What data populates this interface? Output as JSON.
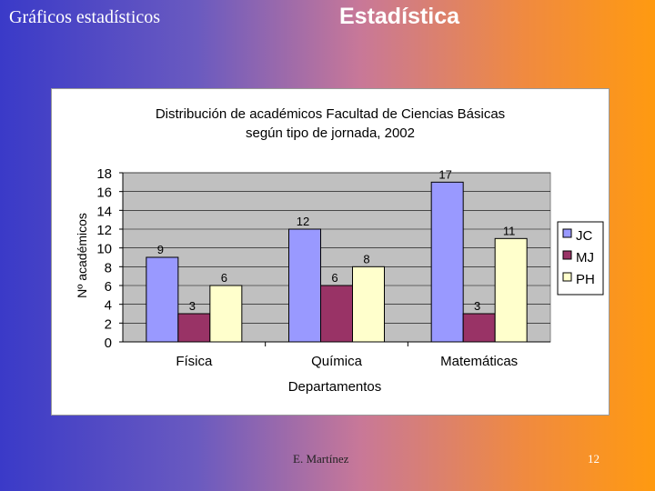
{
  "slide": {
    "subtitle": "Gráficos estadísticos",
    "title": "Estadística",
    "author": "E. Martínez",
    "page_number": "12"
  },
  "chart_data": {
    "type": "bar",
    "title_line1": "Distribución de académicos Facultad de Ciencias Básicas",
    "title_line2": "según tipo de jornada, 2002",
    "xlabel": "Departamentos",
    "ylabel": "Nº académicos",
    "ylim": [
      0,
      18
    ],
    "yticks": [
      "0",
      "2",
      "4",
      "6",
      "8",
      "10",
      "12",
      "14",
      "16",
      "18"
    ],
    "categories": [
      "Física",
      "Química",
      "Matemáticas"
    ],
    "legend_position": "right",
    "grid": true,
    "series": [
      {
        "name": "JC",
        "color": "#9999ff",
        "values": [
          9,
          12,
          17
        ]
      },
      {
        "name": "MJ",
        "color": "#993366",
        "values": [
          3,
          6,
          3
        ]
      },
      {
        "name": "PH",
        "color": "#ffffcc",
        "values": [
          6,
          8,
          11
        ]
      }
    ]
  }
}
